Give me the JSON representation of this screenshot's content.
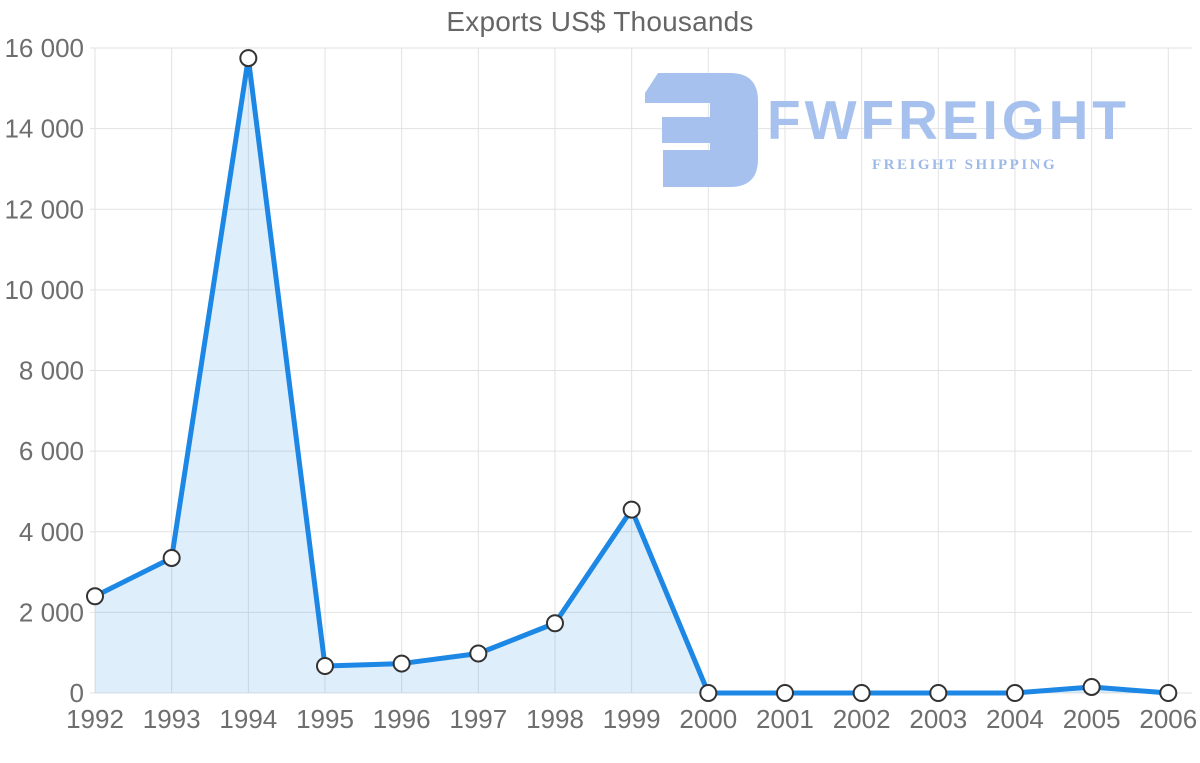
{
  "chart_data": {
    "type": "area",
    "title": "Exports US$ Thousands",
    "x": [
      1992,
      1993,
      1994,
      1995,
      1996,
      1997,
      1998,
      1999,
      2000,
      2001,
      2002,
      2003,
      2004,
      2005,
      2006
    ],
    "series": [
      {
        "name": "Exports US$ Thousands",
        "values": [
          2400,
          3350,
          15750,
          670,
          730,
          980,
          1730,
          4550,
          0,
          0,
          0,
          0,
          0,
          150,
          0
        ]
      }
    ],
    "xlabel": "",
    "ylabel": "",
    "ylim": [
      0,
      16000
    ],
    "ytick_interval": 2000,
    "ytick_labels": [
      "0",
      "2 000",
      "4 000",
      "6 000",
      "8 000",
      "10 000",
      "12 000",
      "14 000",
      "16 000"
    ],
    "grid": true,
    "legend_position": "none",
    "marker_style": "circle",
    "colors": {
      "line": "#1c87e4",
      "fill": "rgba(30,136,229,0.14)",
      "grid": "#e2e2e2",
      "axis_labels": "#6e6e6e",
      "title": "#666666",
      "marker_fill": "#ffffff",
      "marker_stroke": "#333333"
    }
  },
  "logo": {
    "brand": "FWFREIGHT",
    "tagline": "FREIGHT SHIPPING",
    "color": "#a6c1ee",
    "tagline_color": "#9db9e9"
  }
}
